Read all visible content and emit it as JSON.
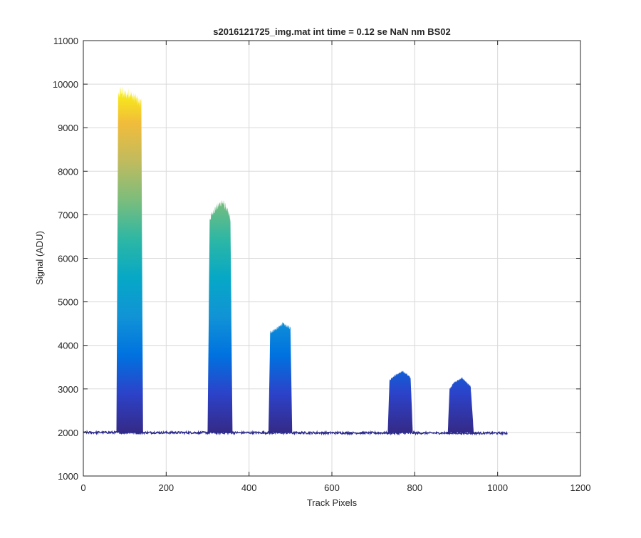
{
  "chart_data": {
    "type": "area",
    "title": "s2016121725_img.mat int time = 0.12 se  NaN nm BS02",
    "xlabel": "Track Pixels",
    "ylabel": "Signal (ADU)",
    "xlim": [
      0,
      1200
    ],
    "ylim": [
      1000,
      11000
    ],
    "xticks": [
      0,
      200,
      400,
      600,
      800,
      1000,
      1200
    ],
    "yticks": [
      1000,
      2000,
      3000,
      4000,
      5000,
      6000,
      7000,
      8000,
      9000,
      10000,
      11000
    ],
    "grid": true,
    "colormap": "parula",
    "colors": {
      "baseline": "#2b2a8c",
      "grid": "#d9d9d9",
      "axis": "#262626",
      "parula_stops": [
        "#352a87",
        "#2c42c9",
        "#0072e0",
        "#1193d6",
        "#06a8c6",
        "#2eb7a4",
        "#7bbd7c",
        "#c0bb5e",
        "#f2bc3b",
        "#f9fb0e"
      ]
    },
    "baseline_level": 2000,
    "x_range": [
      0,
      1024
    ],
    "series": [
      {
        "x": [
          80,
          84,
          90,
          100,
          110,
          120,
          130,
          140,
          144
        ],
        "values": [
          2050,
          9700,
          9850,
          9750,
          9800,
          9700,
          9650,
          9550,
          2050
        ]
      },
      {
        "x": [
          300,
          305,
          315,
          325,
          335,
          345,
          355,
          360
        ],
        "values": [
          2050,
          6900,
          7100,
          7200,
          7300,
          7150,
          6900,
          2050
        ]
      },
      {
        "x": [
          447,
          451,
          460,
          470,
          480,
          490,
          500,
          504
        ],
        "values": [
          2050,
          4300,
          4350,
          4400,
          4500,
          4450,
          4400,
          2050
        ]
      },
      {
        "x": [
          735,
          739,
          750,
          760,
          770,
          780,
          790,
          795
        ],
        "values": [
          2050,
          3200,
          3300,
          3350,
          3400,
          3350,
          3250,
          2050
        ]
      },
      {
        "x": [
          880,
          884,
          895,
          905,
          915,
          925,
          935,
          942
        ],
        "values": [
          2050,
          3000,
          3150,
          3200,
          3250,
          3150,
          3050,
          2050
        ]
      }
    ]
  }
}
